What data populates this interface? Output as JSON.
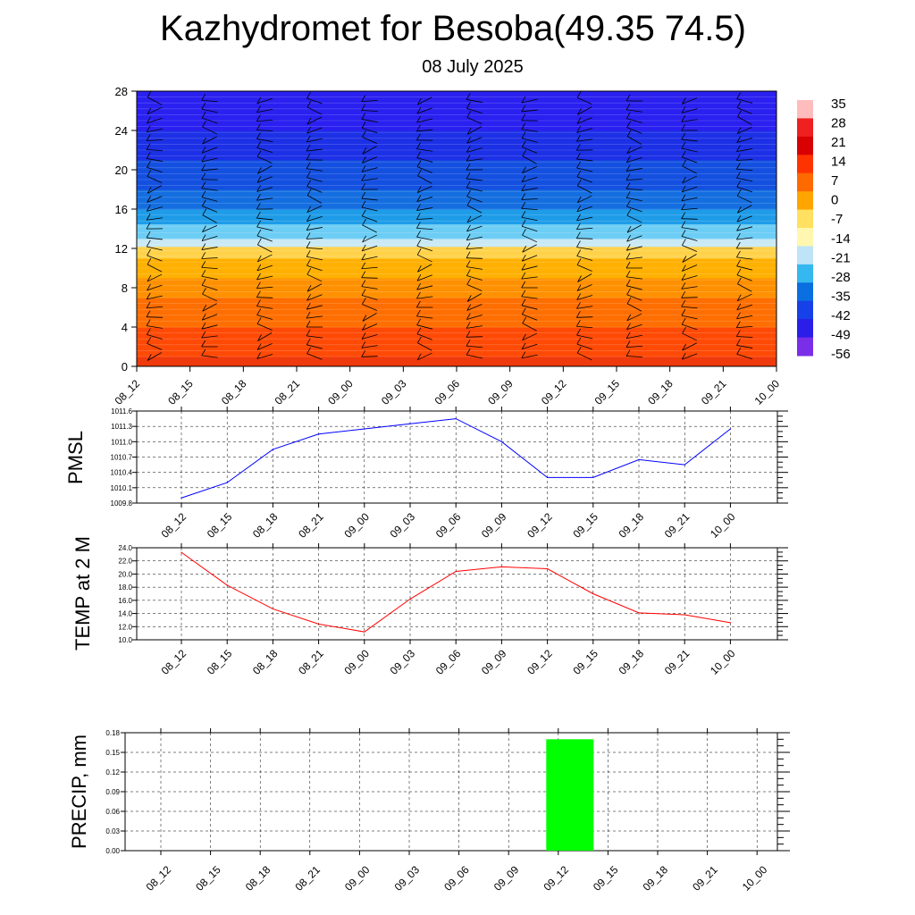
{
  "header": {
    "title": "Kazhydromet for Besoba(49.35 74.5)",
    "date": "08 July 2025"
  },
  "colors": {
    "pmsl_line": "#0000ff",
    "temp_line": "#ff0000",
    "precip_bar": "#00ff00",
    "grid": "#000000"
  },
  "chart_data": [
    {
      "type": "heatmap",
      "id": "cross-section",
      "x_categories": [
        "08_12",
        "08_15",
        "08_18",
        "08_21",
        "09_00",
        "09_03",
        "09_06",
        "09_09",
        "09_12",
        "09_15",
        "09_18",
        "09_21",
        "10_00"
      ],
      "y_ticks": [
        0,
        4,
        8,
        12,
        16,
        20,
        24,
        28
      ],
      "ylim": [
        0,
        28
      ],
      "colorbar": {
        "labels": [
          "35",
          "28",
          "21",
          "14",
          "7",
          "0",
          "-7",
          "-14",
          "-21",
          "-28",
          "-35",
          "-42",
          "-49",
          "-56"
        ],
        "colors": [
          "#ffbcbc",
          "#ee2020",
          "#d80000",
          "#ff3300",
          "#ff6a00",
          "#ffa500",
          "#ffe060",
          "#fff7b0",
          "#bfe3f7",
          "#35b8f0",
          "#0a6fe0",
          "#1640e8",
          "#2a1ee8",
          "#7a2ee8"
        ]
      },
      "layers": [
        {
          "y": [
            0,
            1
          ],
          "color": "#ee3a0c"
        },
        {
          "y": [
            1,
            4
          ],
          "color": "#ff4a06"
        },
        {
          "y": [
            4,
            7
          ],
          "color": "#ff6e00"
        },
        {
          "y": [
            7,
            9
          ],
          "color": "#ff9000"
        },
        {
          "y": [
            9,
            11
          ],
          "color": "#ffb000"
        },
        {
          "y": [
            11,
            12.2
          ],
          "color": "#ffd24a"
        },
        {
          "y": [
            12.2,
            13
          ],
          "color": "#c9e9f5"
        },
        {
          "y": [
            13,
            14.5
          ],
          "color": "#6ccdf5"
        },
        {
          "y": [
            14.5,
            16
          ],
          "color": "#1e9ce8"
        },
        {
          "y": [
            16,
            18
          ],
          "color": "#156ee0"
        },
        {
          "y": [
            18,
            21
          ],
          "color": "#1450e0"
        },
        {
          "y": [
            21,
            24
          ],
          "color": "#1c30e6"
        },
        {
          "y": [
            24,
            28
          ],
          "color": "#2a20f0"
        }
      ],
      "barb_rows": [
        1,
        2,
        3,
        4,
        5,
        6,
        7,
        8,
        9,
        10,
        11,
        12,
        13,
        14,
        15,
        16,
        17,
        18,
        19,
        20,
        21,
        22,
        23,
        24,
        25,
        26,
        27
      ]
    },
    {
      "type": "line",
      "id": "pmsl",
      "ylabel": "PMSL",
      "x_categories": [
        "08_12",
        "08_15",
        "08_18",
        "08_21",
        "09_00",
        "09_03",
        "09_06",
        "09_09",
        "09_12",
        "09_15",
        "09_18",
        "09_21",
        "10_00"
      ],
      "y_ticks": [
        "1009.8",
        "1010.1",
        "1010.4",
        "1010.7",
        "1011.0",
        "1011.3",
        "1011.6"
      ],
      "ylim": [
        1009.8,
        1011.6
      ],
      "values": [
        1009.9,
        1010.2,
        1010.85,
        1011.15,
        1011.25,
        1011.35,
        1011.45,
        1011.0,
        1010.3,
        1010.3,
        1010.65,
        1010.55,
        1011.25
      ]
    },
    {
      "type": "line",
      "id": "temp",
      "ylabel": "TEMP at 2 M",
      "x_categories": [
        "08_12",
        "08_15",
        "08_18",
        "08_21",
        "09_00",
        "09_03",
        "09_06",
        "09_09",
        "09_12",
        "09_15",
        "09_18",
        "09_21",
        "10_00"
      ],
      "y_ticks": [
        "10.0",
        "12.0",
        "14.0",
        "16.0",
        "18.0",
        "20.0",
        "22.0",
        "24.0"
      ],
      "ylim": [
        10.0,
        24.0
      ],
      "values": [
        23.3,
        18.3,
        14.7,
        12.4,
        11.2,
        16.2,
        20.4,
        21.1,
        20.8,
        17.0,
        14.1,
        13.8,
        12.6
      ]
    },
    {
      "type": "bar",
      "id": "precip",
      "ylabel": "PRECIP, mm",
      "x_categories": [
        "08_12",
        "08_15",
        "08_18",
        "08_21",
        "09_00",
        "09_03",
        "09_06",
        "09_09",
        "09_12",
        "09_15",
        "09_18",
        "09_21",
        "10_00"
      ],
      "y_ticks": [
        "0.00",
        "0.03",
        "0.06",
        "0.09",
        "0.12",
        "0.15",
        "0.18"
      ],
      "ylim": [
        0,
        0.18
      ],
      "values": [
        0,
        0,
        0,
        0,
        0,
        0,
        0,
        0,
        0.17,
        0,
        0,
        0,
        0
      ]
    }
  ]
}
